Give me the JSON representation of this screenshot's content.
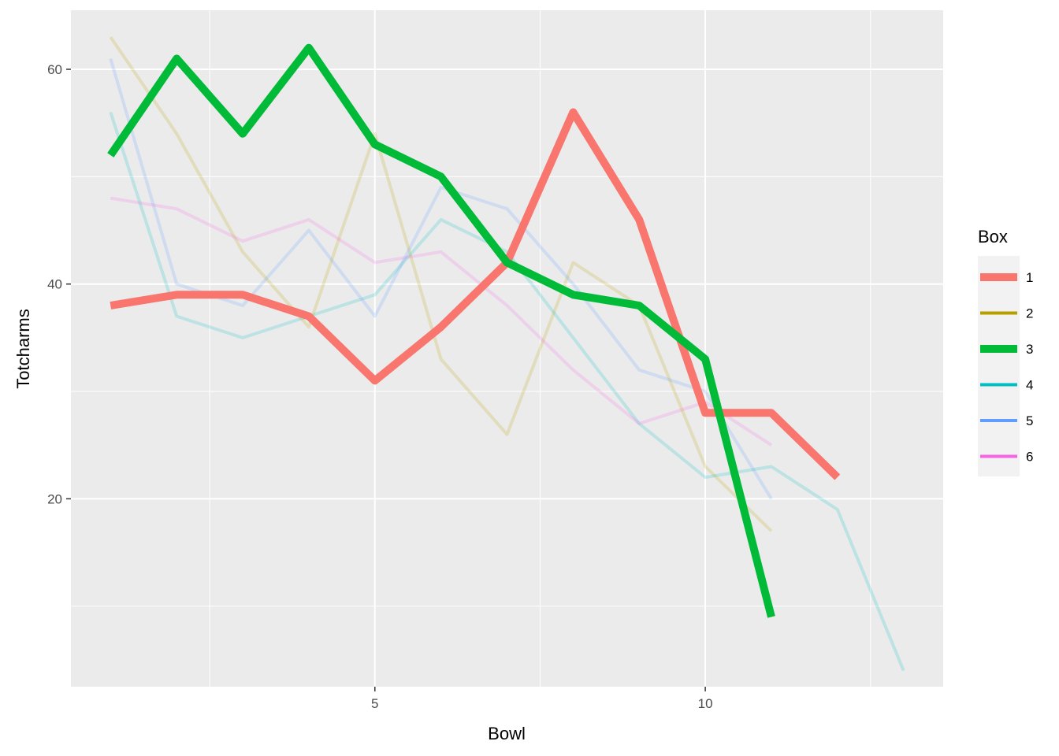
{
  "chart_data": {
    "type": "line",
    "title": "",
    "xlabel": "Bowl",
    "ylabel": "Totcharms",
    "xlim": [
      0.4,
      13.6
    ],
    "ylim": [
      2.5,
      65.5
    ],
    "x_ticks": [
      5,
      10
    ],
    "y_ticks": [
      20,
      40,
      60
    ],
    "grid": true,
    "background": "#EBEBEB",
    "legend": {
      "title": "Box",
      "position": "right"
    },
    "series": [
      {
        "name": "1",
        "color": "#F8766D",
        "highlighted": true,
        "x": [
          1,
          2,
          3,
          4,
          5,
          6,
          7,
          8,
          9,
          10,
          11,
          12
        ],
        "y": [
          38,
          39,
          39,
          37,
          31,
          36,
          42,
          56,
          46,
          28,
          28,
          22
        ]
      },
      {
        "name": "2",
        "color": "#B79F00",
        "highlighted": false,
        "x": [
          1,
          2,
          3,
          4,
          5,
          6,
          7,
          8,
          9,
          10,
          11
        ],
        "y": [
          63,
          54,
          43,
          36,
          54,
          33,
          26,
          42,
          38,
          23,
          17
        ]
      },
      {
        "name": "3",
        "color": "#00BA38",
        "highlighted": true,
        "x": [
          1,
          2,
          3,
          4,
          5,
          6,
          7,
          8,
          9,
          10,
          11
        ],
        "y": [
          52,
          61,
          54,
          62,
          53,
          50,
          42,
          39,
          38,
          33,
          9
        ]
      },
      {
        "name": "4",
        "color": "#00BFC4",
        "highlighted": false,
        "x": [
          1,
          2,
          3,
          4,
          5,
          6,
          7,
          8,
          9,
          10,
          11,
          12,
          13
        ],
        "y": [
          56,
          37,
          35,
          37,
          39,
          46,
          43,
          35,
          27,
          22,
          23,
          19,
          4
        ]
      },
      {
        "name": "5",
        "color": "#619CFF",
        "highlighted": false,
        "x": [
          1,
          2,
          3,
          4,
          5,
          6,
          7,
          8,
          9,
          10,
          11
        ],
        "y": [
          61,
          40,
          38,
          45,
          37,
          49,
          47,
          40,
          32,
          30,
          20
        ]
      },
      {
        "name": "6",
        "color": "#F564E3",
        "highlighted": false,
        "x": [
          1,
          2,
          3,
          4,
          5,
          6,
          7,
          8,
          9,
          10,
          11
        ],
        "y": [
          48,
          47,
          44,
          46,
          42,
          43,
          38,
          32,
          27,
          29,
          25
        ]
      }
    ]
  }
}
